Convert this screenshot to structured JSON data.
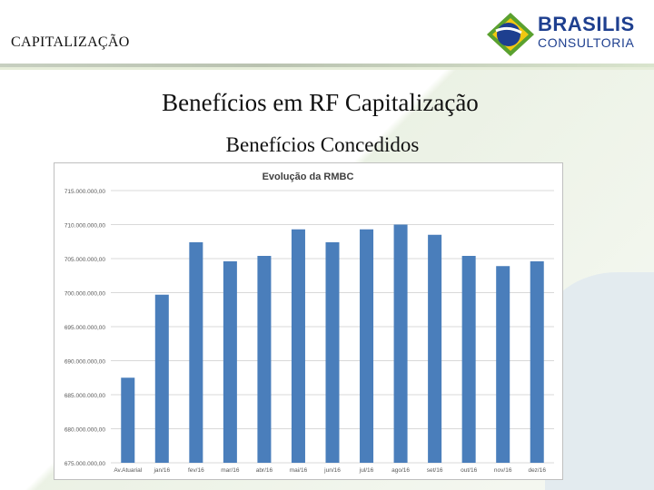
{
  "header": {
    "section_label": "CAPITALIZAÇÃO",
    "logo_line1": "BRASILIS",
    "logo_line2": "CONSULTORIA"
  },
  "slide": {
    "title": "Benefícios em RF Capitalização",
    "subtitle": "Benefícios Concedidos"
  },
  "colors": {
    "bar": "#4a7ebb",
    "logo_blue": "#1e3f8f",
    "logo_green": "#5aa12f",
    "logo_yellow": "#f2c811"
  },
  "chart_data": {
    "type": "bar",
    "title": "Evolução da RMBC",
    "xlabel": "",
    "ylabel": "",
    "ylim": [
      675000000,
      715000000
    ],
    "yticks": [
      "715.000.000,00",
      "710.000.000,00",
      "705.000.000,00",
      "700.000.000,00",
      "695.000.000,00",
      "690.000.000,00",
      "685.000.000,00",
      "680.000.000,00",
      "675.000.000,00"
    ],
    "ytick_values": [
      715000000,
      710000000,
      705000000,
      700000000,
      695000000,
      690000000,
      685000000,
      680000000,
      675000000
    ],
    "categories": [
      "Av.Atuarial",
      "jan/16",
      "fev/16",
      "mar/16",
      "abr/16",
      "mai/16",
      "jun/16",
      "jul/16",
      "ago/16",
      "set/16",
      "out/16",
      "nov/16",
      "dez/16"
    ],
    "values": [
      687500000,
      699700000,
      707400000,
      704600000,
      705400000,
      709300000,
      707400000,
      709300000,
      710000000,
      708500000,
      705400000,
      703900000,
      704600000
    ],
    "grid": true,
    "legend": "none"
  }
}
